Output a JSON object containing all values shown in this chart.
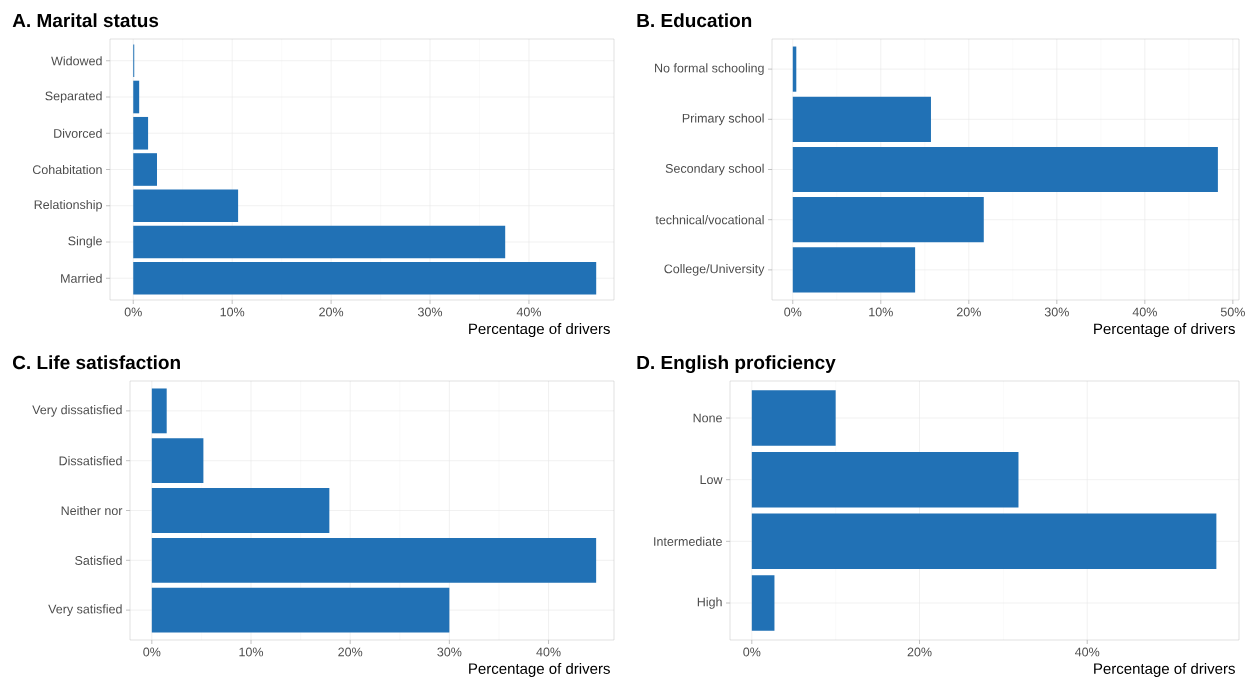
{
  "chart_data": [
    {
      "type": "bar",
      "orientation": "horizontal",
      "title": "A. Marital status",
      "xlabel": "Percentage of drivers",
      "categories": [
        "Widowed",
        "Separated",
        "Divorced",
        "Cohabitation",
        "Relationship",
        "Single",
        "Married"
      ],
      "values": [
        0.1,
        0.6,
        1.5,
        2.4,
        10.6,
        37.6,
        46.8
      ],
      "color": "#2171b5",
      "xlim": [
        -2.35,
        48.6
      ],
      "xticks": [
        {
          "value": 0,
          "label": "0%"
        },
        {
          "value": 10,
          "label": "10%"
        },
        {
          "value": 20,
          "label": "20%"
        },
        {
          "value": 30,
          "label": "30%"
        },
        {
          "value": 40,
          "label": "40%"
        }
      ],
      "grid": true
    },
    {
      "type": "bar",
      "orientation": "horizontal",
      "title": "B. Education",
      "xlabel": "Percentage of drivers",
      "categories": [
        "No formal schooling",
        "Primary school",
        "Secondary school",
        "technical/vocational",
        "College/University"
      ],
      "values": [
        0.4,
        15.7,
        48.3,
        21.7,
        13.9
      ],
      "color": "#2171b5",
      "xlim": [
        -2.36,
        50.7
      ],
      "xticks": [
        {
          "value": 0,
          "label": "0%"
        },
        {
          "value": 10,
          "label": "10%"
        },
        {
          "value": 20,
          "label": "20%"
        },
        {
          "value": 30,
          "label": "30%"
        },
        {
          "value": 40,
          "label": "40%"
        },
        {
          "value": 50,
          "label": "50%"
        }
      ],
      "grid": true
    },
    {
      "type": "bar",
      "orientation": "horizontal",
      "title": "C. Life satisfaction",
      "xlabel": "Percentage of drivers",
      "categories": [
        "Very dissatisfied",
        "Dissatisfied",
        "Neither nor",
        "Satisfied",
        "Very satisfied"
      ],
      "values": [
        1.5,
        5.2,
        17.9,
        44.8,
        30.0
      ],
      "color": "#2171b5",
      "xlim": [
        -2.2,
        46.6
      ],
      "xticks": [
        {
          "value": 0,
          "label": "0%"
        },
        {
          "value": 10,
          "label": "10%"
        },
        {
          "value": 20,
          "label": "20%"
        },
        {
          "value": 30,
          "label": "30%"
        },
        {
          "value": 40,
          "label": "40%"
        }
      ],
      "grid": true
    },
    {
      "type": "bar",
      "orientation": "horizontal",
      "title": "D. English proficiency",
      "xlabel": "Percentage of drivers",
      "categories": [
        "None",
        "Low",
        "Intermediate",
        "High"
      ],
      "values": [
        10.0,
        31.8,
        55.4,
        2.7
      ],
      "color": "#2171b5",
      "xlim": [
        -2.6,
        58.1
      ],
      "xticks": [
        {
          "value": 0,
          "label": "0%"
        },
        {
          "value": 20,
          "label": "20%"
        },
        {
          "value": 40,
          "label": "40%"
        }
      ],
      "grid": true
    }
  ]
}
